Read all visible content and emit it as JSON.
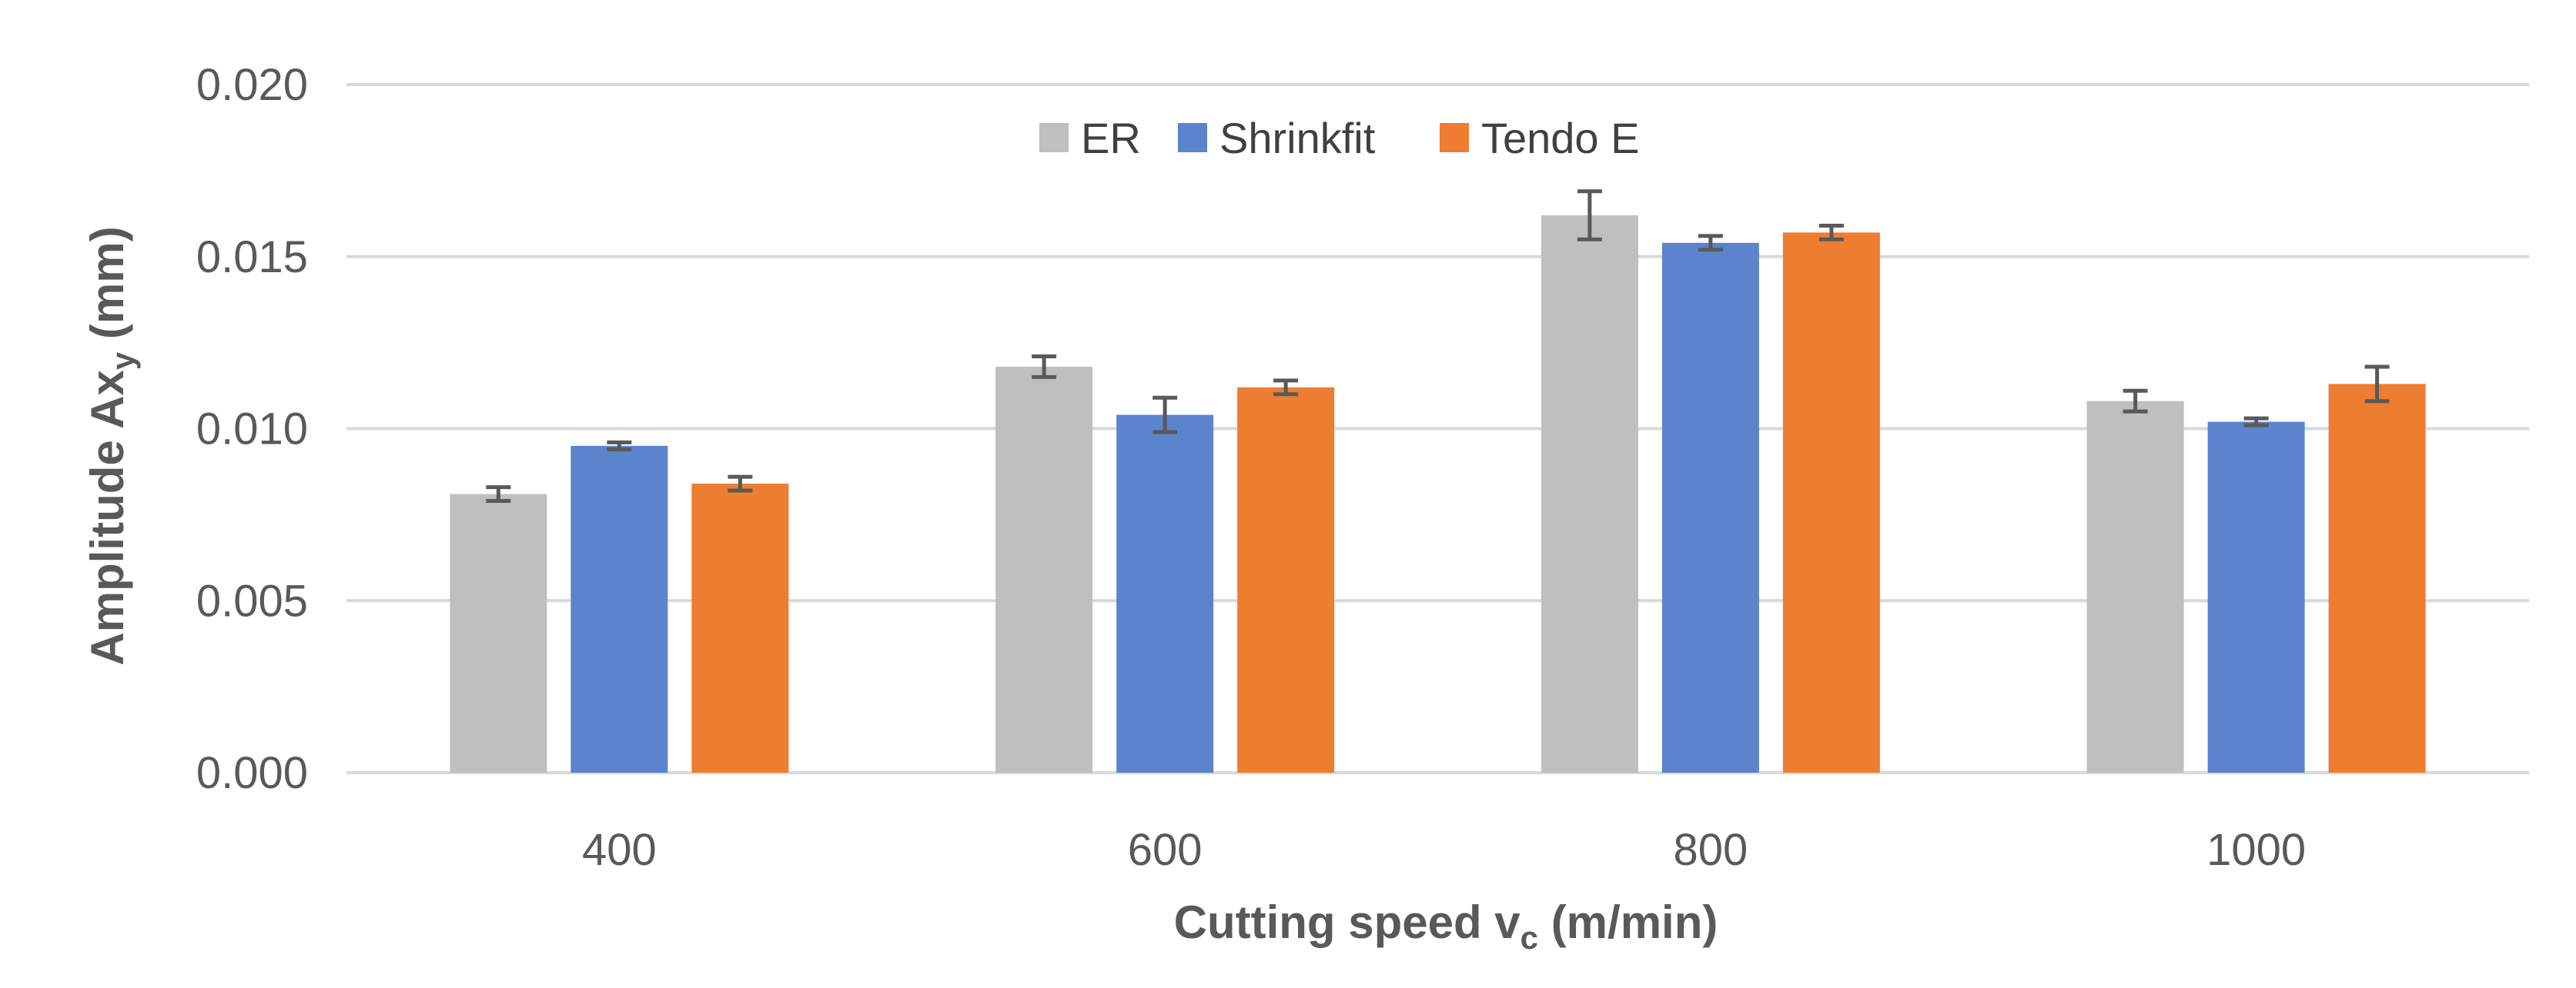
{
  "chart_data": {
    "type": "bar",
    "title": "",
    "xlabel": {
      "main": "Cutting speed v",
      "sub": "c",
      "tail": " (m/min)"
    },
    "ylabel": {
      "main": "Amplitude Ax",
      "sub": "y",
      "tail": " (mm)"
    },
    "categories": [
      "400",
      "600",
      "800",
      "1000"
    ],
    "ylim": [
      0,
      0.02
    ],
    "yticks": [
      "0.000",
      "0.005",
      "0.010",
      "0.015",
      "0.020"
    ],
    "ytick_values": [
      0,
      0.005,
      0.01,
      0.015,
      0.02
    ],
    "grid": true,
    "legend_position": "top-center",
    "series": [
      {
        "name": "ER",
        "color": "#BFBFBF",
        "values": [
          0.0081,
          0.0118,
          0.0162,
          0.0108
        ],
        "errors": [
          0.0002,
          0.0003,
          0.0007,
          0.0003
        ]
      },
      {
        "name": "Shrinkfit",
        "color": "#5B84CC",
        "values": [
          0.0095,
          0.0104,
          0.0154,
          0.0102
        ],
        "errors": [
          0.0001,
          0.0005,
          0.0002,
          0.0001
        ]
      },
      {
        "name": "Tendo E",
        "color": "#ED7D31",
        "values": [
          0.0084,
          0.0112,
          0.0157,
          0.0113
        ],
        "errors": [
          0.0002,
          0.0002,
          0.0002,
          0.0005
        ]
      }
    ]
  }
}
